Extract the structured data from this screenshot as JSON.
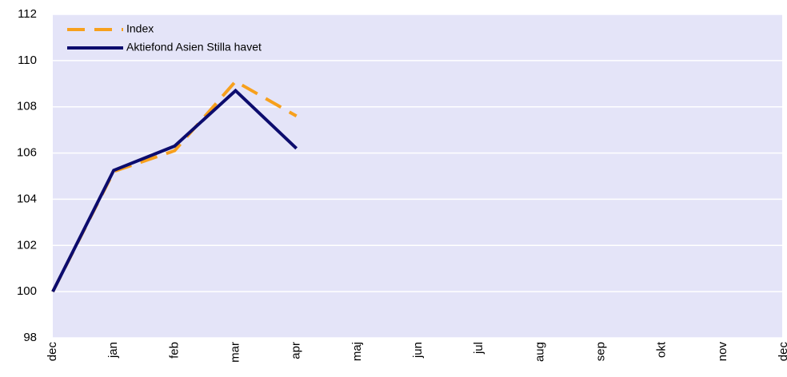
{
  "chart_data": {
    "type": "line",
    "categories": [
      "dec",
      "jan",
      "feb",
      "mar",
      "apr",
      "maj",
      "jun",
      "jul",
      "aug",
      "sep",
      "okt",
      "nov",
      "dec"
    ],
    "series": [
      {
        "name": "Index",
        "color": "#f7a01d",
        "dashed": true,
        "values": [
          100,
          105.2,
          106.1,
          109.1,
          107.6,
          null,
          null,
          null,
          null,
          null,
          null,
          null,
          null
        ]
      },
      {
        "name": "Aktiefond Asien Stilla havet",
        "color": "#0c0c6e",
        "dashed": false,
        "values": [
          100,
          105.25,
          106.3,
          108.7,
          106.2,
          null,
          null,
          null,
          null,
          null,
          null,
          null,
          null
        ]
      }
    ],
    "ylim": [
      98,
      112
    ],
    "yticks": [
      98,
      100,
      102,
      104,
      106,
      108,
      110,
      112
    ],
    "grid": true,
    "legend": "top-left"
  }
}
